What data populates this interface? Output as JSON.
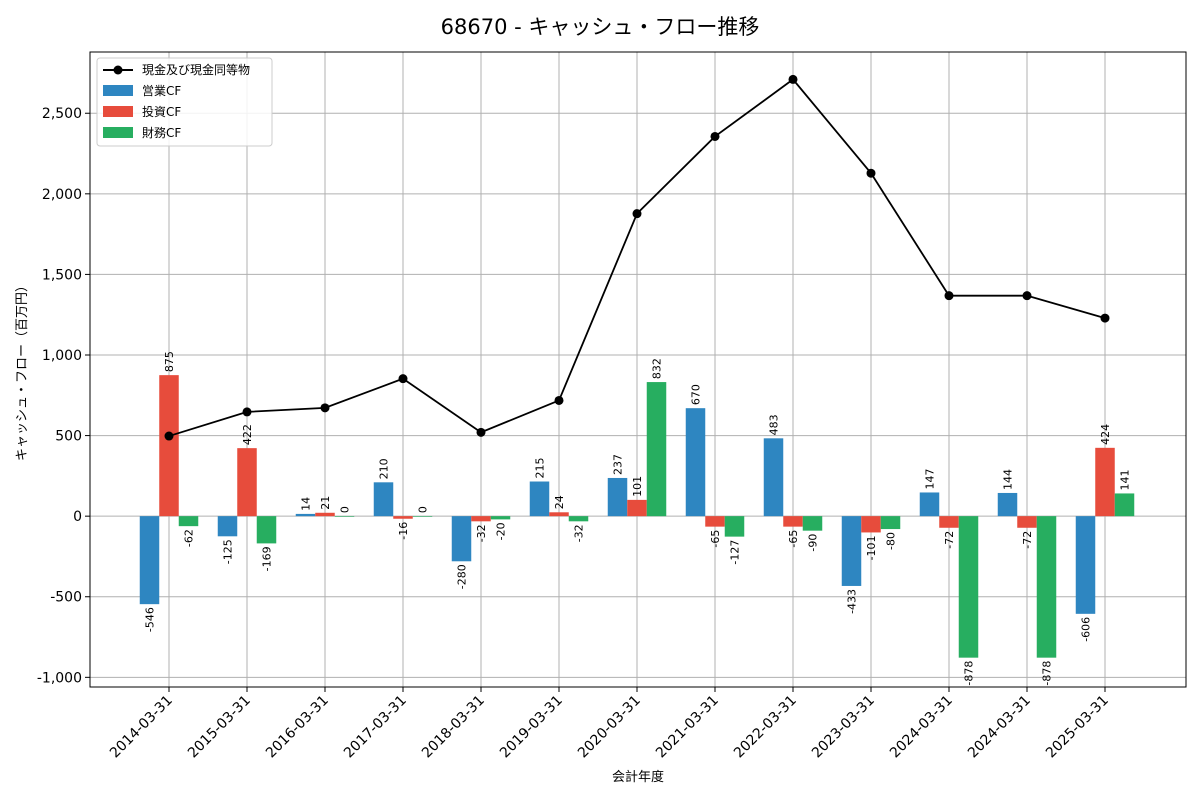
{
  "chart_data": {
    "type": "bar",
    "title": "68670 - キャッシュ・フロー推移",
    "xlabel": "会計年度",
    "ylabel": "キャッシュ・フロー（百万円）",
    "ylim": [
      -1060,
      2880
    ],
    "yticks": [
      -1000,
      -500,
      0,
      500,
      1000,
      1500,
      2000,
      2500
    ],
    "ytick_labels": [
      "-1,000",
      "-500",
      "0",
      "500",
      "1,000",
      "1,500",
      "2,000",
      "2,500"
    ],
    "grid": true,
    "legend_position": "top-left",
    "categories": [
      "2014-03-31",
      "2015-03-31",
      "2016-03-31",
      "2017-03-31",
      "2018-03-31",
      "2019-03-31",
      "2020-03-31",
      "2021-03-31",
      "2022-03-31",
      "2023-03-31",
      "2024-03-31",
      "2024-03-31",
      "2025-03-31"
    ],
    "series": [
      {
        "name": "営業CF",
        "kind": "bar",
        "color": "#2e86c1",
        "values": [
          -546,
          -125,
          14,
          210,
          -280,
          215,
          237,
          670,
          483,
          -433,
          147,
          144,
          -606
        ],
        "labels": [
          "-546",
          "-125",
          "14",
          "210",
          "-280",
          "215",
          "237",
          "670",
          "483",
          "-433",
          "147",
          "144",
          "-606"
        ]
      },
      {
        "name": "投資CF",
        "kind": "bar",
        "color": "#e74c3c",
        "values": [
          875,
          422,
          21,
          -16,
          -32,
          24,
          101,
          -65,
          -65,
          -101,
          -72,
          -72,
          424
        ],
        "labels": [
          "875",
          "422",
          "21",
          "-16",
          "-32",
          "24",
          "101",
          "-65",
          "-65",
          "-101",
          "-72",
          "-72",
          "424"
        ]
      },
      {
        "name": "財務CF",
        "kind": "bar",
        "color": "#27ae60",
        "values": [
          -62,
          -169,
          0,
          0,
          -20,
          -32,
          832,
          -127,
          -90,
          -80,
          -878,
          -878,
          141
        ],
        "labels": [
          "-62",
          "-169",
          "0",
          "0",
          "-20",
          "-32",
          "832",
          "-127",
          "-90",
          "-80",
          "-878",
          "-878",
          "141"
        ]
      },
      {
        "name": "現金及び現金同等物",
        "kind": "line",
        "color": "#000000",
        "values": [
          497,
          647,
          672,
          853,
          520,
          718,
          1877,
          2356,
          2710,
          2128,
          1368,
          1368,
          1229
        ]
      }
    ]
  }
}
